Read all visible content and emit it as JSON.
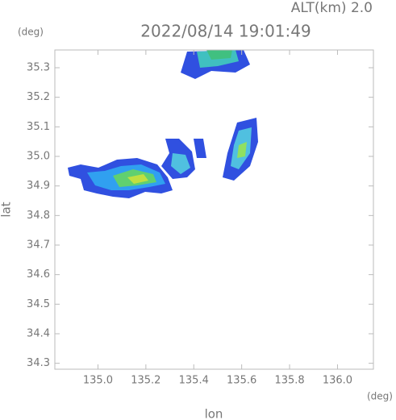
{
  "chart_data": {
    "type": "radar-map",
    "title": "2022/08/14 19:01:49",
    "subtitle": "ALT(km) 2.0",
    "x_label": "lon",
    "y_label": "lat",
    "x_unit": "(deg)",
    "y_unit": "(deg)",
    "xlim": [
      134.82,
      136.15
    ],
    "ylim": [
      34.28,
      35.36
    ],
    "xticks": [
      {
        "value": 135.0,
        "label": "135.0"
      },
      135.2,
      135.4,
      135.6,
      135.8,
      {
        "value": 136.0,
        "label": "136.0"
      }
    ],
    "yticks": [
      34.3,
      34.4,
      34.5,
      34.6,
      34.7,
      34.8,
      34.9,
      {
        "value": 35.0,
        "label": "35.0"
      },
      35.1,
      35.2,
      35.3
    ]
  }
}
